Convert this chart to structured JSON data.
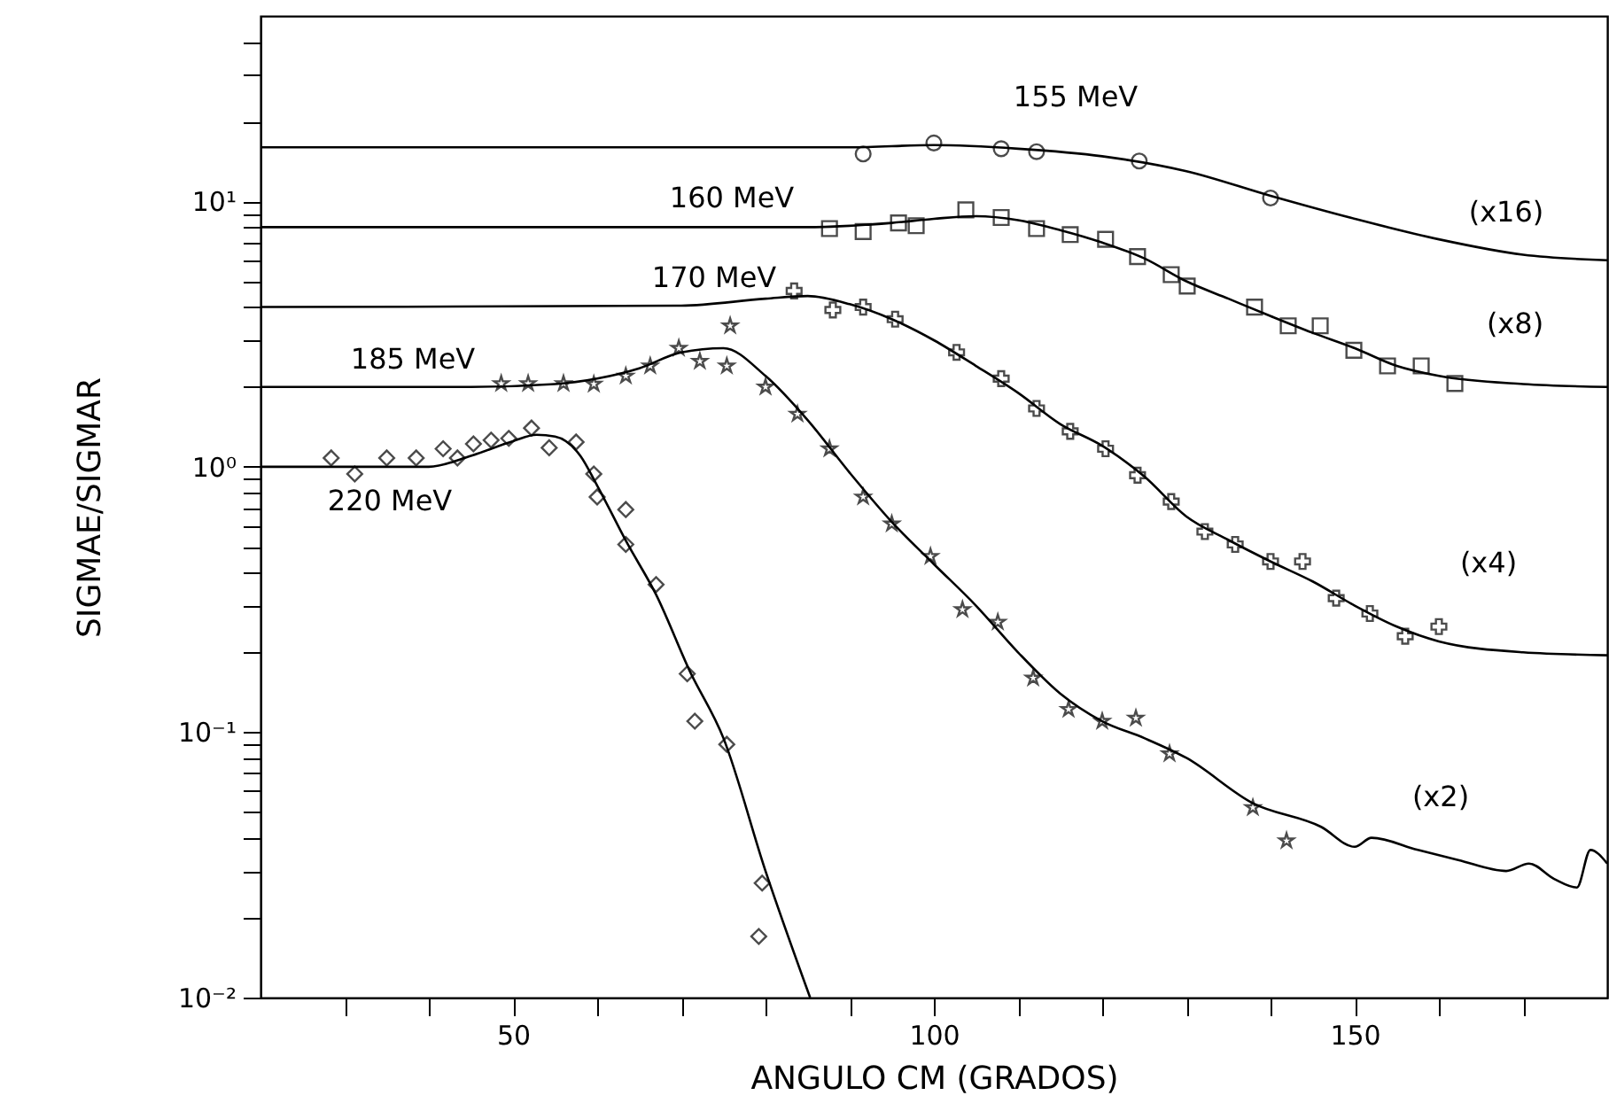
{
  "chart_data": {
    "type": "line",
    "xlabel": "ANGULO CM (GRADOS)",
    "ylabel": "SIGMAE/SIGMAR",
    "log": "y",
    "xlim": [
      20,
      180
    ],
    "ylim": [
      0.01,
      50
    ],
    "xticks": [
      {
        "value": 30,
        "label": null
      },
      {
        "value": 40,
        "label": null
      },
      50,
      {
        "value": 60,
        "label": null
      },
      {
        "value": 70,
        "label": null
      },
      {
        "value": 80,
        "label": null
      },
      {
        "value": 90,
        "label": null
      },
      100,
      {
        "value": 110,
        "label": null
      },
      {
        "value": 120,
        "label": null
      },
      {
        "value": 130,
        "label": null
      },
      {
        "value": 140,
        "label": null
      },
      150,
      {
        "value": 160,
        "label": null
      },
      {
        "value": 170,
        "label": null
      }
    ],
    "yticks": [
      {
        "value": 0.01,
        "label": "10⁻²"
      },
      {
        "value": 0.02,
        "label": null
      },
      {
        "value": 0.03,
        "label": null
      },
      {
        "value": 0.04,
        "label": null
      },
      {
        "value": 0.05,
        "label": null
      },
      {
        "value": 0.06,
        "label": null
      },
      {
        "value": 0.07,
        "label": null
      },
      {
        "value": 0.08,
        "label": null
      },
      {
        "value": 0.09,
        "label": null
      },
      {
        "value": 0.1,
        "label": "10⁻¹"
      },
      {
        "value": 0.2,
        "label": null
      },
      {
        "value": 0.3,
        "label": null
      },
      {
        "value": 0.4,
        "label": null
      },
      {
        "value": 0.5,
        "label": null
      },
      {
        "value": 0.6,
        "label": null
      },
      {
        "value": 0.7,
        "label": null
      },
      {
        "value": 0.8,
        "label": null
      },
      {
        "value": 0.9,
        "label": null
      },
      {
        "value": 1,
        "label": "10⁰"
      },
      {
        "value": 2,
        "label": null
      },
      {
        "value": 3,
        "label": null
      },
      {
        "value": 4,
        "label": null
      },
      {
        "value": 5,
        "label": null
      },
      {
        "value": 6,
        "label": null
      },
      {
        "value": 7,
        "label": null
      },
      {
        "value": 8,
        "label": null
      },
      {
        "value": 9,
        "label": null
      },
      {
        "value": 10,
        "label": "10¹"
      },
      {
        "value": 20,
        "label": null
      },
      {
        "value": 30,
        "label": null
      },
      {
        "value": 40,
        "label": null
      }
    ],
    "series": [
      {
        "type": "line",
        "name": "155 MeV",
        "color": "#000000",
        "x": [
          20,
          90,
          100,
          110,
          120,
          130,
          140,
          150,
          160,
          170,
          180
        ],
        "values": [
          16,
          16,
          16.3,
          15.8,
          14.8,
          13,
          10.5,
          8.6,
          7.2,
          6.3,
          6.0
        ]
      },
      {
        "type": "scatter",
        "marker": "circle",
        "color": "#000000",
        "x": [
          91.6,
          100,
          108,
          112.2,
          124.4,
          140
        ],
        "values": [
          15.1,
          16.6,
          15.8,
          15.4,
          14.2,
          10.3
        ]
      },
      {
        "type": "line",
        "name": "160 MeV",
        "color": "#000000",
        "x": [
          20,
          85,
          95,
          100,
          105,
          110,
          115,
          120,
          125,
          130,
          135,
          140,
          145,
          150,
          155,
          160,
          170,
          180
        ],
        "values": [
          8,
          8,
          8.3,
          8.6,
          8.8,
          8.5,
          7.8,
          7.0,
          6.1,
          5.0,
          4.3,
          3.7,
          3.2,
          2.8,
          2.4,
          2.2,
          2.05,
          2.0
        ]
      },
      {
        "type": "scatter",
        "marker": "square",
        "color": "#000000",
        "x": [
          87.6,
          91.6,
          95.8,
          97.9,
          103.8,
          108,
          112.2,
          116.2,
          120.4,
          124.2,
          128.2,
          130.1,
          138.1,
          142.1,
          145.9,
          149.9,
          153.9,
          157.9,
          161.9
        ],
        "values": [
          7.9,
          7.7,
          8.3,
          8.1,
          9.3,
          8.7,
          7.9,
          7.5,
          7.2,
          6.2,
          5.3,
          4.8,
          4.0,
          3.4,
          3.4,
          2.75,
          2.4,
          2.4,
          2.06
        ]
      },
      {
        "type": "line",
        "name": "170 MeV",
        "color": "#000000",
        "x": [
          20,
          70,
          80,
          85,
          90,
          95,
          100,
          105,
          110,
          115,
          120,
          125,
          130,
          135,
          140,
          145,
          150,
          155,
          160,
          170,
          180
        ],
        "values": [
          4,
          4.05,
          4.3,
          4.4,
          4.1,
          3.6,
          3.0,
          2.4,
          1.9,
          1.45,
          1.2,
          0.92,
          0.65,
          0.53,
          0.44,
          0.37,
          0.3,
          0.25,
          0.22,
          0.2,
          0.195
        ]
      },
      {
        "type": "scatter",
        "marker": "cross",
        "color": "#000000",
        "x": [
          83.4,
          88,
          91.6,
          95.4,
          102.7,
          108,
          112.2,
          116.2,
          120.4,
          124.2,
          128.2,
          132.2,
          135.8,
          140,
          143.8,
          147.8,
          151.8,
          156,
          160
        ],
        "values": [
          4.6,
          3.9,
          4.0,
          3.6,
          2.7,
          2.15,
          1.66,
          1.36,
          1.17,
          0.93,
          0.74,
          0.57,
          0.51,
          0.44,
          0.44,
          0.32,
          0.28,
          0.23,
          0.25
        ]
      },
      {
        "type": "line",
        "name": "185 MeV",
        "color": "#000000",
        "x": [
          20,
          45,
          55,
          60,
          65,
          70,
          75,
          80,
          85,
          90,
          95,
          100,
          105,
          110,
          115,
          120,
          125,
          130,
          137.9,
          146,
          150,
          152,
          157.5,
          162.3,
          168,
          170.7,
          173.7,
          176.4,
          178,
          180
        ],
        "values": [
          2,
          2,
          2.05,
          2.15,
          2.35,
          2.7,
          2.8,
          2.2,
          1.5,
          0.95,
          0.62,
          0.43,
          0.3,
          0.2,
          0.14,
          0.11,
          0.095,
          0.08,
          0.054,
          0.044,
          0.037,
          0.04,
          0.036,
          0.033,
          0.03,
          0.032,
          0.028,
          0.026,
          0.036,
          0.032
        ]
      },
      {
        "type": "scatter",
        "marker": "star",
        "color": "#000000",
        "x": [
          48.6,
          51.8,
          56,
          59.6,
          63.4,
          66.3,
          69.7,
          72.2,
          75.8,
          75.4,
          80,
          83.8,
          87.6,
          91.6,
          95,
          99.6,
          103.4,
          107.6,
          111.8,
          116,
          120,
          124,
          128,
          137.9,
          141.9
        ],
        "values": [
          2.06,
          2.06,
          2.06,
          2.05,
          2.2,
          2.4,
          2.8,
          2.5,
          3.4,
          2.4,
          2.0,
          1.58,
          1.17,
          0.77,
          0.61,
          0.46,
          0.29,
          0.26,
          0.16,
          0.122,
          0.11,
          0.113,
          0.083,
          0.052,
          0.039
        ]
      },
      {
        "type": "line",
        "name": "220 MeV",
        "color": "#000000",
        "x": [
          20,
          40,
          45,
          50,
          52.8,
          55,
          58,
          60,
          63.5,
          67,
          71,
          75,
          80,
          85.3
        ],
        "values": [
          1,
          1,
          1.1,
          1.25,
          1.32,
          1.3,
          1.1,
          0.85,
          0.52,
          0.33,
          0.17,
          0.095,
          0.03,
          0.01
        ]
      },
      {
        "type": "scatter",
        "marker": "diamond",
        "color": "#000000",
        "x": [
          28.4,
          31.2,
          35,
          38.5,
          41.7,
          43.4,
          45.3,
          47.4,
          49.5,
          52.2,
          54.3,
          57.5,
          59.6,
          60,
          63.4,
          63.4,
          67,
          70.7,
          71.6,
          75.4,
          79.6,
          79.2
        ],
        "values": [
          1.08,
          0.94,
          1.08,
          1.08,
          1.17,
          1.08,
          1.22,
          1.26,
          1.28,
          1.4,
          1.18,
          1.24,
          0.94,
          0.77,
          0.69,
          0.51,
          0.36,
          0.166,
          0.11,
          0.09,
          0.027,
          0.017
        ]
      }
    ],
    "annotations": [
      "(x16)",
      "(x8)",
      "(x4)",
      "(x2)"
    ]
  }
}
